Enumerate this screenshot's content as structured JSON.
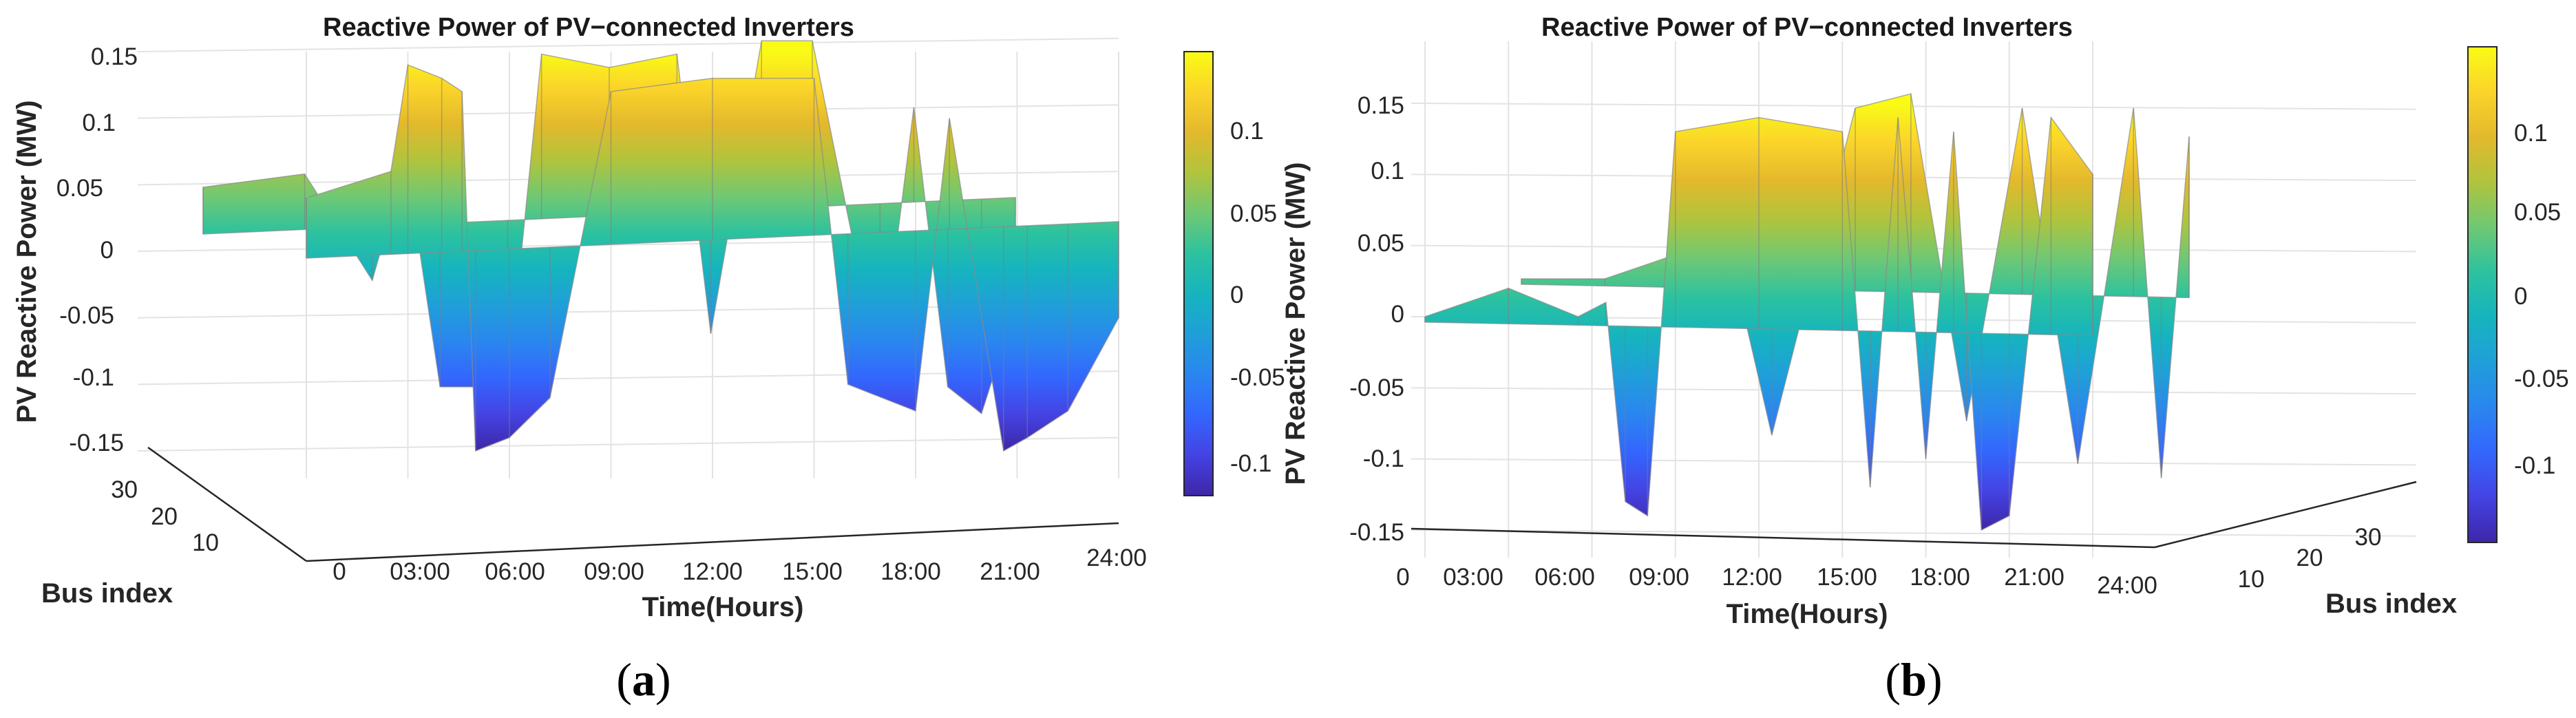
{
  "chart_data": [
    {
      "type": "surface",
      "panel": "(a)",
      "panel_letter": "a",
      "title": "Reactive Power of PV−connected Inverters",
      "xlabel": "Time(Hours)",
      "ylabel": "Bus index",
      "zlabel": "PV Reactive Power (MW)",
      "zlim": [
        -0.15,
        0.15
      ],
      "z_ticks": [
        "0.15",
        "0.1",
        "0.05",
        "0",
        "-0.05",
        "-0.1",
        "-0.15"
      ],
      "x_ticks": [
        "0",
        "03:00",
        "06:00",
        "09:00",
        "12:00",
        "15:00",
        "18:00",
        "21:00",
        "24:00"
      ],
      "y_ticks": [
        "30",
        "20",
        "10"
      ],
      "colorbar": {
        "colormap": "parula",
        "ticks": [
          "0.1",
          "0.05",
          "0",
          "-0.05",
          "-0.1"
        ],
        "range": [
          -0.14,
          0.14
        ]
      },
      "colors": {
        "low": "#3e26a8",
        "mid": "#1fc8a8",
        "high": "#f9fb15"
      },
      "grid": true,
      "series": [
        {
          "time_h": [
            0,
            2.5,
            3,
            4,
            4.6,
            5,
            6,
            7.2,
            9,
            12,
            15,
            16,
            18,
            19,
            20.6,
            21.3,
            22.5,
            24
          ],
          "q_mvar": [
            0.04,
            0.06,
            0.14,
            0.13,
            0.12,
            -0.15,
            -0.14,
            -0.11,
            0.12,
            0.13,
            0.13,
            -0.1,
            -0.12,
            0.1,
            -0.15,
            -0.14,
            -0.12,
            -0.05
          ]
        },
        {
          "time_h": [
            0,
            3,
            5,
            6,
            7,
            9,
            10,
            12,
            14,
            15,
            16.5,
            18,
            20,
            21,
            22,
            23,
            24
          ],
          "q_mvar": [
            0.03,
            0.04,
            -0.04,
            0.05,
            -0.12,
            -0.12,
            0.13,
            0.12,
            0.13,
            -0.08,
            0.14,
            0.14,
            -0.11,
            0.09,
            -0.12,
            -0.14,
            -0.06
          ]
        }
      ]
    },
    {
      "type": "surface",
      "panel": "(b)",
      "panel_letter": "b",
      "title": "Reactive Power of PV−connected Inverters",
      "xlabel": "Time(Hours)",
      "ylabel": "Bus index",
      "zlabel": "PV Reactive Power (MW)",
      "zlim": [
        -0.15,
        0.15
      ],
      "z_ticks": [
        "0.15",
        "0.1",
        "0.05",
        "0",
        "-0.05",
        "-0.1",
        "-0.15"
      ],
      "x_ticks": [
        "0",
        "03:00",
        "06:00",
        "09:00",
        "12:00",
        "15:00",
        "18:00",
        "21:00",
        "24:00"
      ],
      "y_ticks": [
        "10",
        "20",
        "30"
      ],
      "colorbar": {
        "colormap": "parula",
        "ticks": [
          "0.1",
          "0.05",
          "0",
          "-0.05",
          "-0.1"
        ],
        "range": [
          -0.14,
          0.14
        ]
      },
      "colors": {
        "low": "#3e26a8",
        "mid": "#1fc8a8",
        "high": "#f9fb15"
      },
      "grid": true,
      "series": [
        {
          "time_h": [
            0,
            3,
            5.5,
            6.5,
            7.2,
            8,
            9,
            12,
            15,
            16,
            17,
            18,
            19,
            20,
            21,
            22.5,
            24
          ],
          "q_mvar": [
            0.0,
            0.02,
            0.0,
            0.01,
            -0.13,
            -0.14,
            0.13,
            0.14,
            0.13,
            -0.12,
            0.14,
            -0.1,
            0.13,
            -0.15,
            -0.14,
            0.14,
            0.1
          ]
        },
        {
          "time_h": [
            0,
            3,
            6,
            7,
            9,
            12,
            14,
            16,
            18,
            20,
            22,
            23,
            24
          ],
          "q_mvar": [
            0.0,
            0.0,
            0.02,
            0.06,
            -0.11,
            0.12,
            0.13,
            -0.1,
            0.12,
            -0.13,
            0.12,
            -0.14,
            0.1
          ]
        }
      ]
    }
  ]
}
